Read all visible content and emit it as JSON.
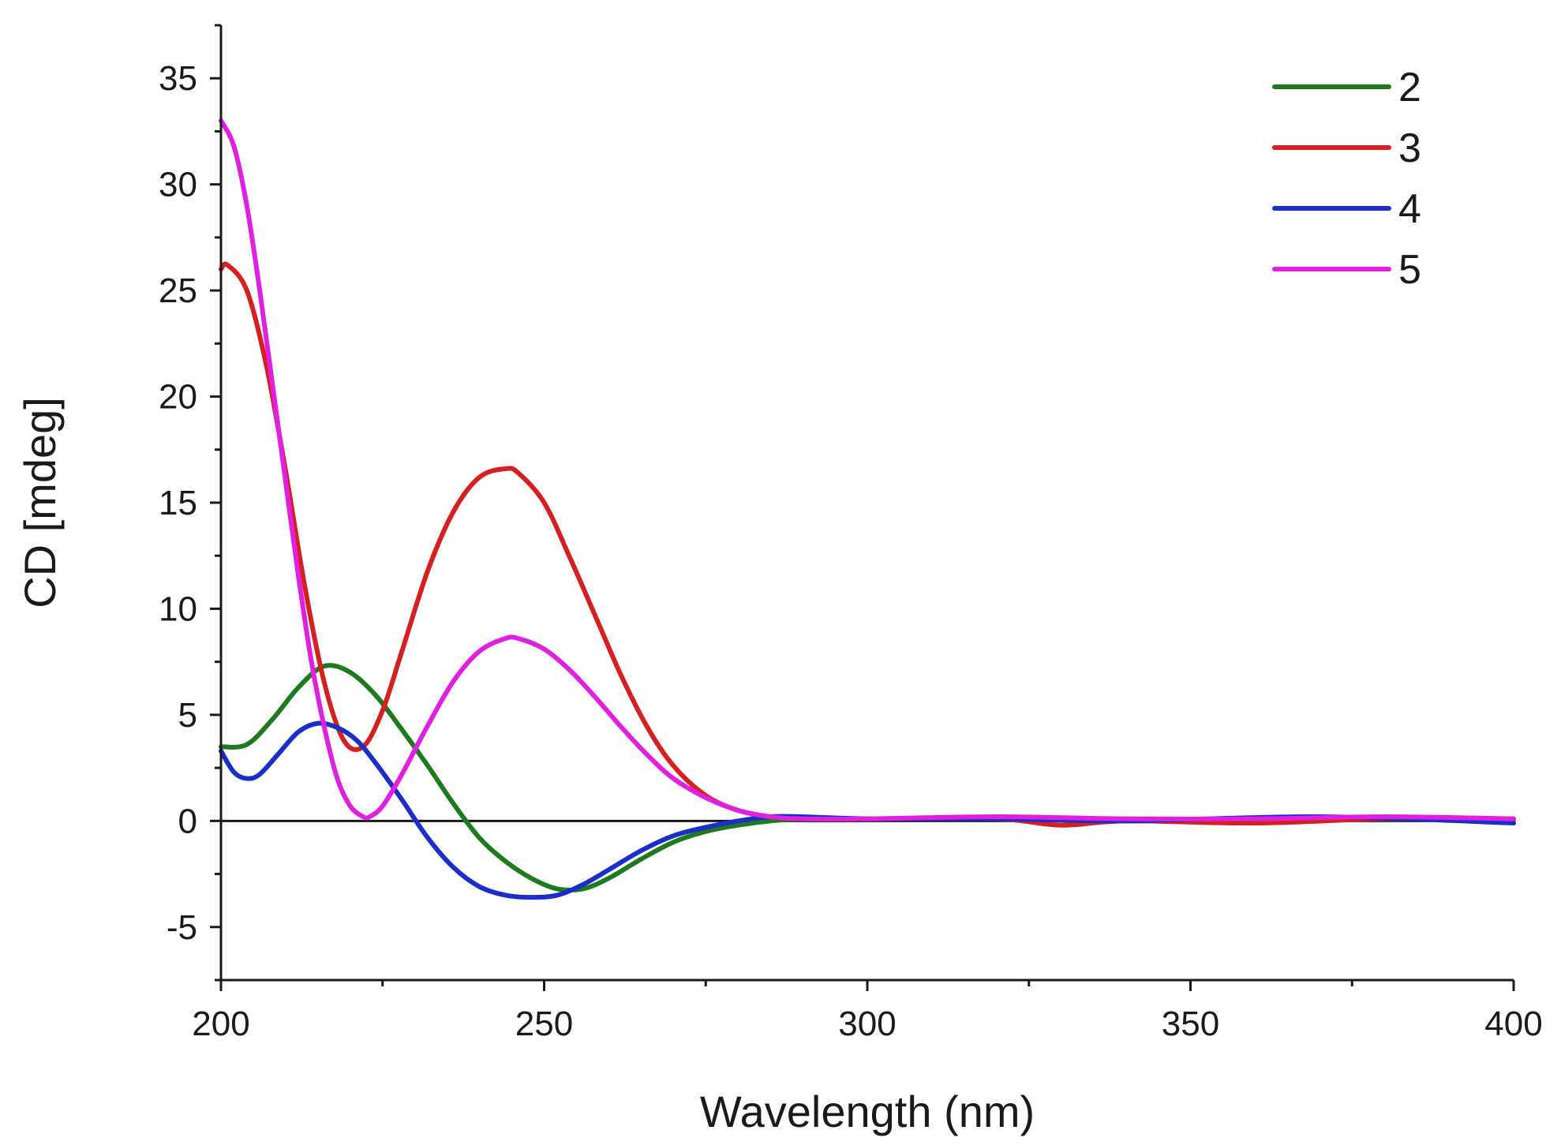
{
  "chart_data": {
    "type": "line",
    "title": "",
    "xlabel": "Wavelength (nm)",
    "ylabel": "CD [mdeg]",
    "xlim": [
      200,
      400
    ],
    "ylim": [
      -7.5,
      37.5
    ],
    "x_ticks": [
      200,
      250,
      300,
      350,
      400
    ],
    "y_ticks": [
      -5,
      0,
      5,
      10,
      15,
      20,
      25,
      30,
      35
    ],
    "x_tick_labels": [
      "200",
      "250",
      "300",
      "350",
      "400"
    ],
    "y_tick_labels": [
      "-5",
      "0",
      "5",
      "10",
      "15",
      "20",
      "25",
      "30",
      "35"
    ],
    "zero_line": true,
    "grid": false,
    "legend_position": "top-right",
    "series": [
      {
        "name": "2",
        "color": "#1f7a1f",
        "x": [
          200,
          204,
          208,
          212,
          216,
          220,
          224,
          228,
          232,
          236,
          240,
          244,
          248,
          252,
          256,
          260,
          265,
          270,
          275,
          280,
          285,
          290,
          300,
          320,
          340,
          360,
          380,
          400
        ],
        "y": [
          3.5,
          3.6,
          4.8,
          6.3,
          7.3,
          7.0,
          5.9,
          4.3,
          2.6,
          0.8,
          -0.8,
          -1.9,
          -2.7,
          -3.2,
          -3.2,
          -2.7,
          -1.8,
          -1.0,
          -0.5,
          -0.2,
          0.0,
          0.1,
          0.1,
          0.1,
          0.0,
          0.05,
          0.1,
          0.05
        ]
      },
      {
        "name": "3",
        "color": "#d42020",
        "x": [
          200,
          201,
          204,
          207,
          210,
          213,
          216,
          219,
          222,
          225,
          228,
          232,
          236,
          240,
          244,
          246,
          250,
          254,
          258,
          262,
          266,
          270,
          275,
          280,
          285,
          290,
          300,
          320,
          330,
          340,
          360,
          380,
          400
        ],
        "y": [
          26.0,
          26.2,
          25.0,
          21.5,
          16.5,
          11.0,
          6.5,
          3.8,
          3.5,
          5.2,
          8.0,
          11.8,
          14.6,
          16.2,
          16.6,
          16.4,
          15.0,
          12.4,
          9.6,
          6.8,
          4.4,
          2.6,
          1.2,
          0.5,
          0.2,
          0.1,
          0.1,
          0.1,
          -0.2,
          0.0,
          -0.1,
          0.1,
          0.1
        ]
      },
      {
        "name": "4",
        "color": "#1c2ec8",
        "x": [
          200,
          202,
          204,
          206,
          209,
          212,
          215,
          218,
          221,
          224,
          228,
          232,
          236,
          240,
          244,
          248,
          252,
          256,
          260,
          265,
          270,
          275,
          280,
          285,
          290,
          300,
          320,
          340,
          370,
          400
        ],
        "y": [
          3.3,
          2.3,
          2.0,
          2.2,
          3.2,
          4.2,
          4.6,
          4.4,
          3.8,
          2.7,
          1.0,
          -0.8,
          -2.2,
          -3.1,
          -3.5,
          -3.6,
          -3.5,
          -3.0,
          -2.3,
          -1.4,
          -0.7,
          -0.3,
          0.0,
          0.2,
          0.2,
          0.1,
          0.1,
          0.0,
          0.2,
          -0.1
        ]
      },
      {
        "name": "5",
        "color": "#e020e0",
        "x": [
          200,
          202,
          204,
          206,
          208,
          210,
          212,
          214,
          216,
          218,
          220,
          222,
          223,
          225,
          228,
          232,
          236,
          240,
          244,
          246,
          250,
          254,
          258,
          262,
          266,
          270,
          275,
          280,
          285,
          290,
          300,
          320,
          340,
          360,
          380,
          400
        ],
        "y": [
          33.0,
          31.8,
          29.0,
          25.0,
          20.5,
          16.0,
          11.5,
          7.5,
          4.4,
          2.0,
          0.7,
          0.2,
          0.2,
          0.7,
          2.2,
          4.5,
          6.6,
          8.0,
          8.6,
          8.6,
          8.1,
          7.1,
          5.8,
          4.4,
          3.1,
          2.0,
          1.1,
          0.5,
          0.2,
          0.1,
          0.1,
          0.2,
          0.1,
          0.1,
          0.2,
          0.1
        ]
      }
    ]
  }
}
